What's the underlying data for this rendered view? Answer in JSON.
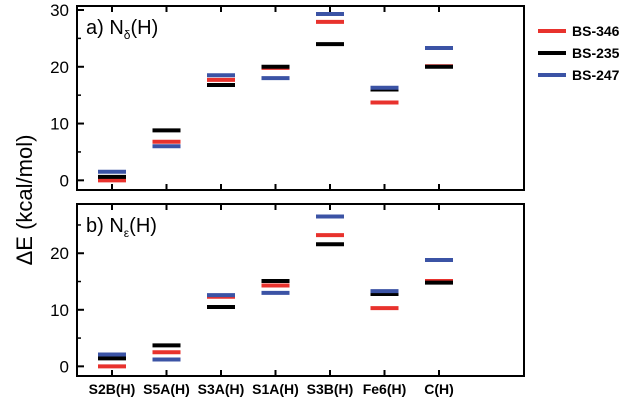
{
  "chart_data": {
    "type": "scatter",
    "categories": [
      "S2B(H)",
      "S5A(H)",
      "S3A(H)",
      "S1A(H)",
      "S3B(H)",
      "Fe6(H)",
      "C(H)"
    ],
    "ylabel": "ΔE (kcal/mol)",
    "legend_position": "right",
    "legend": [
      {
        "name": "BS-346",
        "color": "#e8322d"
      },
      {
        "name": "BS-235",
        "color": "#000000"
      },
      {
        "name": "BS-247",
        "color": "#3b53a5"
      }
    ],
    "panels": [
      {
        "label_prefix": "a) N",
        "label_sub": "δ",
        "label_suffix": "(H)",
        "ylim": [
          -1,
          30
        ],
        "yticks": [
          0,
          10,
          20,
          30
        ],
        "series": [
          {
            "name": "BS-346",
            "color": "#e8322d",
            "values": [
              0.0,
              6.8,
              17.7,
              19.8,
              27.9,
              13.7,
              20.1
            ]
          },
          {
            "name": "BS-235",
            "color": "#000000",
            "values": [
              0.6,
              8.8,
              16.8,
              20.0,
              24.0,
              16.0,
              20.0
            ]
          },
          {
            "name": "BS-247",
            "color": "#3b53a5",
            "values": [
              1.5,
              6.0,
              18.5,
              18.0,
              29.3,
              16.3,
              23.3
            ]
          }
        ]
      },
      {
        "label_prefix": "b) N",
        "label_sub": "ε",
        "label_suffix": "(H)",
        "ylim": [
          -1,
          28
        ],
        "yticks": [
          0,
          10,
          20
        ],
        "series": [
          {
            "name": "BS-346",
            "color": "#e8322d",
            "values": [
              0.0,
              2.5,
              12.3,
              14.3,
              23.2,
              10.3,
              15.1
            ]
          },
          {
            "name": "BS-235",
            "color": "#000000",
            "values": [
              1.4,
              3.7,
              10.5,
              15.1,
              21.6,
              12.8,
              14.8
            ]
          },
          {
            "name": "BS-247",
            "color": "#3b53a5",
            "values": [
              2.1,
              1.2,
              12.6,
              13.0,
              26.5,
              13.3,
              18.8
            ]
          }
        ]
      }
    ]
  }
}
